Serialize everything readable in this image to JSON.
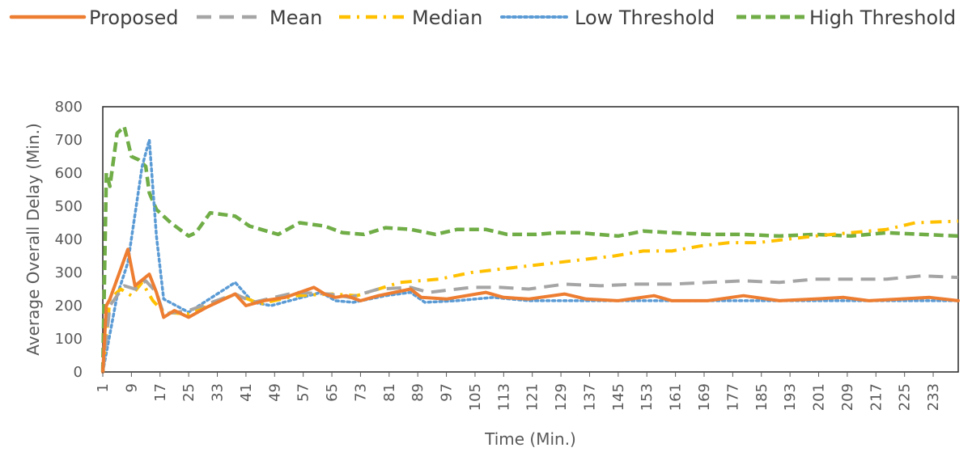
{
  "chart_data": {
    "type": "line",
    "xlabel": "Time (Min.)",
    "ylabel": "Average Overall Delay (Min.)",
    "ylim": [
      0,
      800
    ],
    "yticks": [
      0,
      100,
      200,
      300,
      400,
      500,
      600,
      700,
      800
    ],
    "xlim": [
      1,
      240
    ],
    "xticks": [
      1,
      9,
      17,
      25,
      33,
      41,
      49,
      57,
      65,
      73,
      81,
      89,
      97,
      105,
      113,
      121,
      129,
      137,
      145,
      153,
      161,
      169,
      177,
      185,
      193,
      201,
      209,
      217,
      225,
      233
    ],
    "legend": {
      "position": "top"
    },
    "grid": false,
    "series": [
      {
        "name": "Proposed",
        "color": "#ED7D31",
        "dash": "solid",
        "points": [
          [
            1,
            0
          ],
          [
            2,
            200
          ],
          [
            3,
            220
          ],
          [
            5,
            280
          ],
          [
            8,
            370
          ],
          [
            10,
            260
          ],
          [
            14,
            295
          ],
          [
            16,
            240
          ],
          [
            18,
            165
          ],
          [
            21,
            185
          ],
          [
            25,
            165
          ],
          [
            30,
            195
          ],
          [
            38,
            235
          ],
          [
            41,
            200
          ],
          [
            46,
            215
          ],
          [
            52,
            225
          ],
          [
            60,
            255
          ],
          [
            63,
            235
          ],
          [
            66,
            225
          ],
          [
            69,
            230
          ],
          [
            73,
            215
          ],
          [
            78,
            230
          ],
          [
            87,
            250
          ],
          [
            90,
            225
          ],
          [
            97,
            220
          ],
          [
            108,
            240
          ],
          [
            113,
            225
          ],
          [
            120,
            220
          ],
          [
            130,
            235
          ],
          [
            136,
            220
          ],
          [
            145,
            215
          ],
          [
            155,
            230
          ],
          [
            160,
            215
          ],
          [
            170,
            215
          ],
          [
            180,
            230
          ],
          [
            190,
            215
          ],
          [
            200,
            220
          ],
          [
            208,
            225
          ],
          [
            215,
            215
          ],
          [
            224,
            220
          ],
          [
            232,
            225
          ],
          [
            240,
            215
          ]
        ]
      },
      {
        "name": "Mean",
        "color": "#A5A5A5",
        "dash": "long",
        "points": [
          [
            1,
            0
          ],
          [
            3,
            200
          ],
          [
            7,
            260
          ],
          [
            10,
            250
          ],
          [
            13,
            275
          ],
          [
            16,
            240
          ],
          [
            18,
            175
          ],
          [
            25,
            185
          ],
          [
            38,
            235
          ],
          [
            43,
            210
          ],
          [
            55,
            240
          ],
          [
            64,
            235
          ],
          [
            70,
            225
          ],
          [
            78,
            250
          ],
          [
            87,
            255
          ],
          [
            92,
            240
          ],
          [
            104,
            255
          ],
          [
            112,
            255
          ],
          [
            120,
            250
          ],
          [
            130,
            265
          ],
          [
            140,
            260
          ],
          [
            150,
            265
          ],
          [
            160,
            265
          ],
          [
            170,
            270
          ],
          [
            180,
            275
          ],
          [
            190,
            270
          ],
          [
            200,
            280
          ],
          [
            208,
            280
          ],
          [
            220,
            280
          ],
          [
            230,
            290
          ],
          [
            240,
            285
          ]
        ]
      },
      {
        "name": "Median",
        "color": "#FFC000",
        "dash": "dashdot",
        "points": [
          [
            1,
            0
          ],
          [
            3,
            220
          ],
          [
            6,
            250
          ],
          [
            9,
            230
          ],
          [
            12,
            270
          ],
          [
            15,
            215
          ],
          [
            18,
            180
          ],
          [
            25,
            175
          ],
          [
            38,
            235
          ],
          [
            45,
            205
          ],
          [
            55,
            230
          ],
          [
            65,
            235
          ],
          [
            72,
            230
          ],
          [
            84,
            270
          ],
          [
            95,
            280
          ],
          [
            104,
            300
          ],
          [
            112,
            310
          ],
          [
            120,
            320
          ],
          [
            128,
            330
          ],
          [
            136,
            340
          ],
          [
            144,
            350
          ],
          [
            152,
            365
          ],
          [
            160,
            365
          ],
          [
            168,
            380
          ],
          [
            176,
            390
          ],
          [
            184,
            390
          ],
          [
            192,
            400
          ],
          [
            200,
            410
          ],
          [
            210,
            420
          ],
          [
            220,
            430
          ],
          [
            228,
            450
          ],
          [
            240,
            455
          ]
        ]
      },
      {
        "name": "Low Threshold",
        "color": "#5B9BD5",
        "dash": "dotted",
        "points": [
          [
            1,
            0
          ],
          [
            5,
            230
          ],
          [
            8,
            330
          ],
          [
            12,
            620
          ],
          [
            14,
            700
          ],
          [
            16,
            410
          ],
          [
            18,
            220
          ],
          [
            25,
            180
          ],
          [
            38,
            270
          ],
          [
            43,
            210
          ],
          [
            48,
            200
          ],
          [
            62,
            240
          ],
          [
            66,
            215
          ],
          [
            71,
            210
          ],
          [
            80,
            230
          ],
          [
            87,
            240
          ],
          [
            91,
            210
          ],
          [
            100,
            215
          ],
          [
            110,
            225
          ],
          [
            120,
            215
          ],
          [
            135,
            215
          ],
          [
            145,
            215
          ],
          [
            160,
            215
          ],
          [
            175,
            215
          ],
          [
            190,
            215
          ],
          [
            200,
            215
          ],
          [
            210,
            215
          ],
          [
            225,
            215
          ],
          [
            240,
            215
          ]
        ]
      },
      {
        "name": "High Threshold",
        "color": "#70AD47",
        "dash": "dashed",
        "points": [
          [
            1,
            0
          ],
          [
            2,
            600
          ],
          [
            3,
            560
          ],
          [
            5,
            720
          ],
          [
            7,
            740
          ],
          [
            9,
            650
          ],
          [
            11,
            640
          ],
          [
            13,
            620
          ],
          [
            14,
            540
          ],
          [
            16,
            490
          ],
          [
            20,
            450
          ],
          [
            25,
            410
          ],
          [
            27,
            420
          ],
          [
            31,
            480
          ],
          [
            38,
            470
          ],
          [
            42,
            440
          ],
          [
            50,
            415
          ],
          [
            56,
            450
          ],
          [
            63,
            440
          ],
          [
            68,
            420
          ],
          [
            74,
            415
          ],
          [
            80,
            435
          ],
          [
            87,
            430
          ],
          [
            94,
            415
          ],
          [
            100,
            430
          ],
          [
            108,
            430
          ],
          [
            114,
            415
          ],
          [
            122,
            415
          ],
          [
            128,
            420
          ],
          [
            134,
            420
          ],
          [
            145,
            410
          ],
          [
            152,
            425
          ],
          [
            160,
            420
          ],
          [
            170,
            415
          ],
          [
            180,
            415
          ],
          [
            190,
            410
          ],
          [
            200,
            415
          ],
          [
            210,
            410
          ],
          [
            220,
            420
          ],
          [
            230,
            415
          ],
          [
            240,
            410
          ]
        ]
      }
    ]
  }
}
